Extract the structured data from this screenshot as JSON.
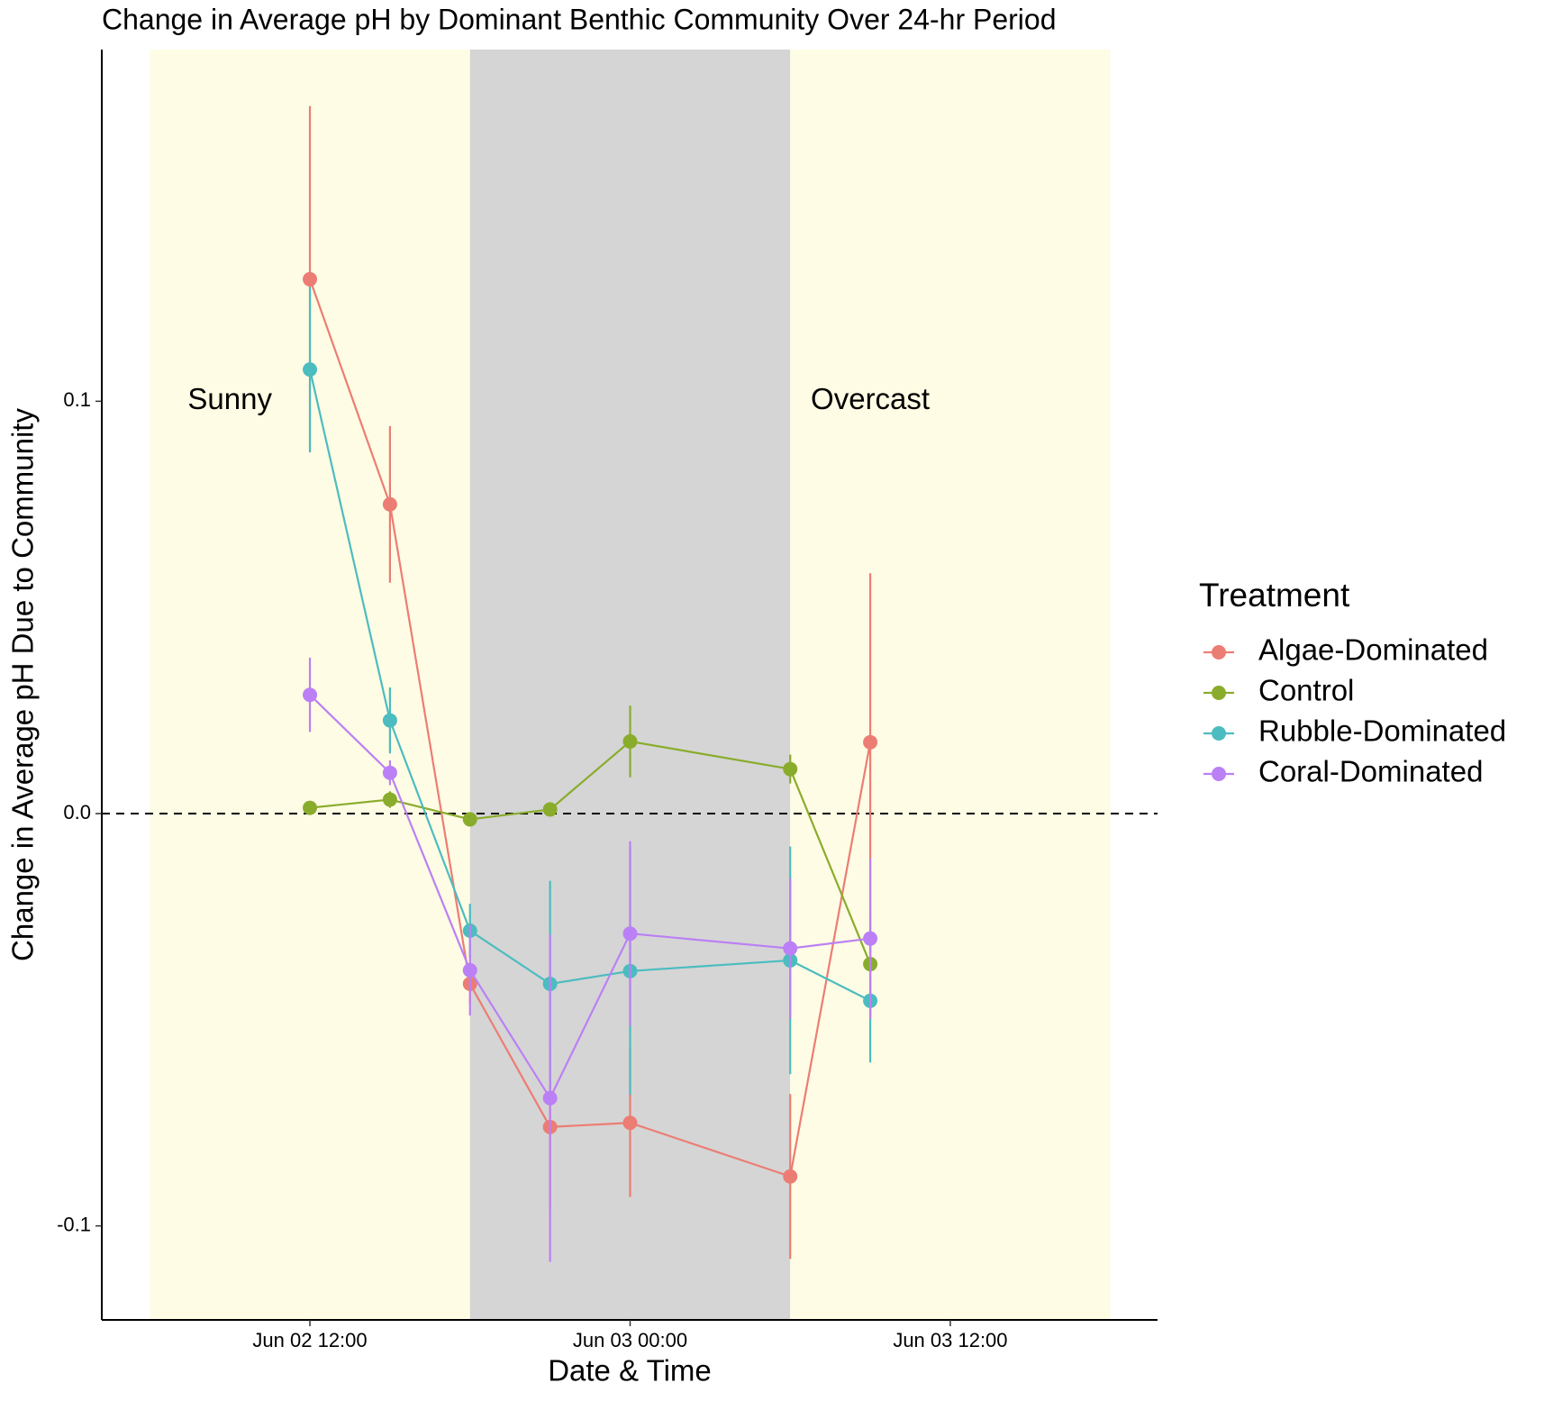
{
  "chart_data": {
    "type": "line",
    "title": "Change in Average pH by Dominant Benthic Community Over 24-hr Period",
    "x_label": "Date & Time",
    "y_label": "Change in Average pH Due to Community",
    "legend_title": "Treatment",
    "legend_position": "right",
    "x": [
      "Jun 02 12:00",
      "Jun 02 15:00",
      "Jun 02 18:00",
      "Jun 02 21:00",
      "Jun 03 00:00",
      "Jun 03 06:00",
      "Jun 03 09:00"
    ],
    "xlim": [
      "Jun 02 04:12",
      "Jun 03 19:46"
    ],
    "xticks": [
      "Jun 02 12:00",
      "Jun 03 00:00",
      "Jun 03 12:00"
    ],
    "ylim": [
      -0.1228,
      0.1853
    ],
    "yticks": [
      -0.1,
      {
        "value": 0,
        "label": "0.0"
      },
      0.1
    ],
    "reference_line": 0,
    "bands": [
      {
        "start": "Jun 02 06:00",
        "end": "Jun 02 18:00",
        "color": "#fefce4"
      },
      {
        "start": "Jun 02 18:00",
        "end": "Jun 03 06:00",
        "color": "#d5d5d5"
      },
      {
        "start": "Jun 03 06:00",
        "end": "Jun 03 18:00",
        "color": "#fefce4"
      }
    ],
    "annotations": [
      {
        "text": "Sunny",
        "x": "Jun 02 09:00",
        "y": 0.1
      },
      {
        "text": "Overcast",
        "x": "Jun 03 09:00",
        "y": 0.1
      }
    ],
    "series": [
      {
        "name": "Algae-Dominated",
        "color": "#ec7d74",
        "values": [
          0.1296,
          0.075,
          -0.0413,
          -0.076,
          -0.075,
          -0.088,
          0.0173
        ],
        "errors": [
          0.042,
          0.019,
          0.005,
          0.02,
          0.018,
          0.02,
          0.041
        ]
      },
      {
        "name": "Control",
        "color": "#8aac2c",
        "values": [
          0.0014,
          0.0034,
          -0.0014,
          0.001,
          0.0175,
          0.0108,
          -0.0365
        ],
        "errors": [
          0.0015,
          0.002,
          0.001,
          0.0015,
          0.0087,
          0.0035,
          0.013
        ]
      },
      {
        "name": "Rubble-Dominated",
        "color": "#4cbcc0",
        "values": [
          0.1077,
          0.0226,
          -0.0284,
          -0.0413,
          -0.0382,
          -0.0356,
          -0.0454
        ],
        "errors": [
          0.02,
          0.008,
          0.0065,
          0.025,
          0.03,
          0.0276,
          0.015
        ]
      },
      {
        "name": "Coral-Dominated",
        "color": "#bb80f5",
        "values": [
          0.0288,
          0.0099,
          -0.038,
          -0.069,
          -0.0291,
          -0.0327,
          -0.0303
        ],
        "errors": [
          0.009,
          0.003,
          0.011,
          0.0397,
          0.0224,
          0.017,
          0.0195
        ]
      }
    ]
  }
}
